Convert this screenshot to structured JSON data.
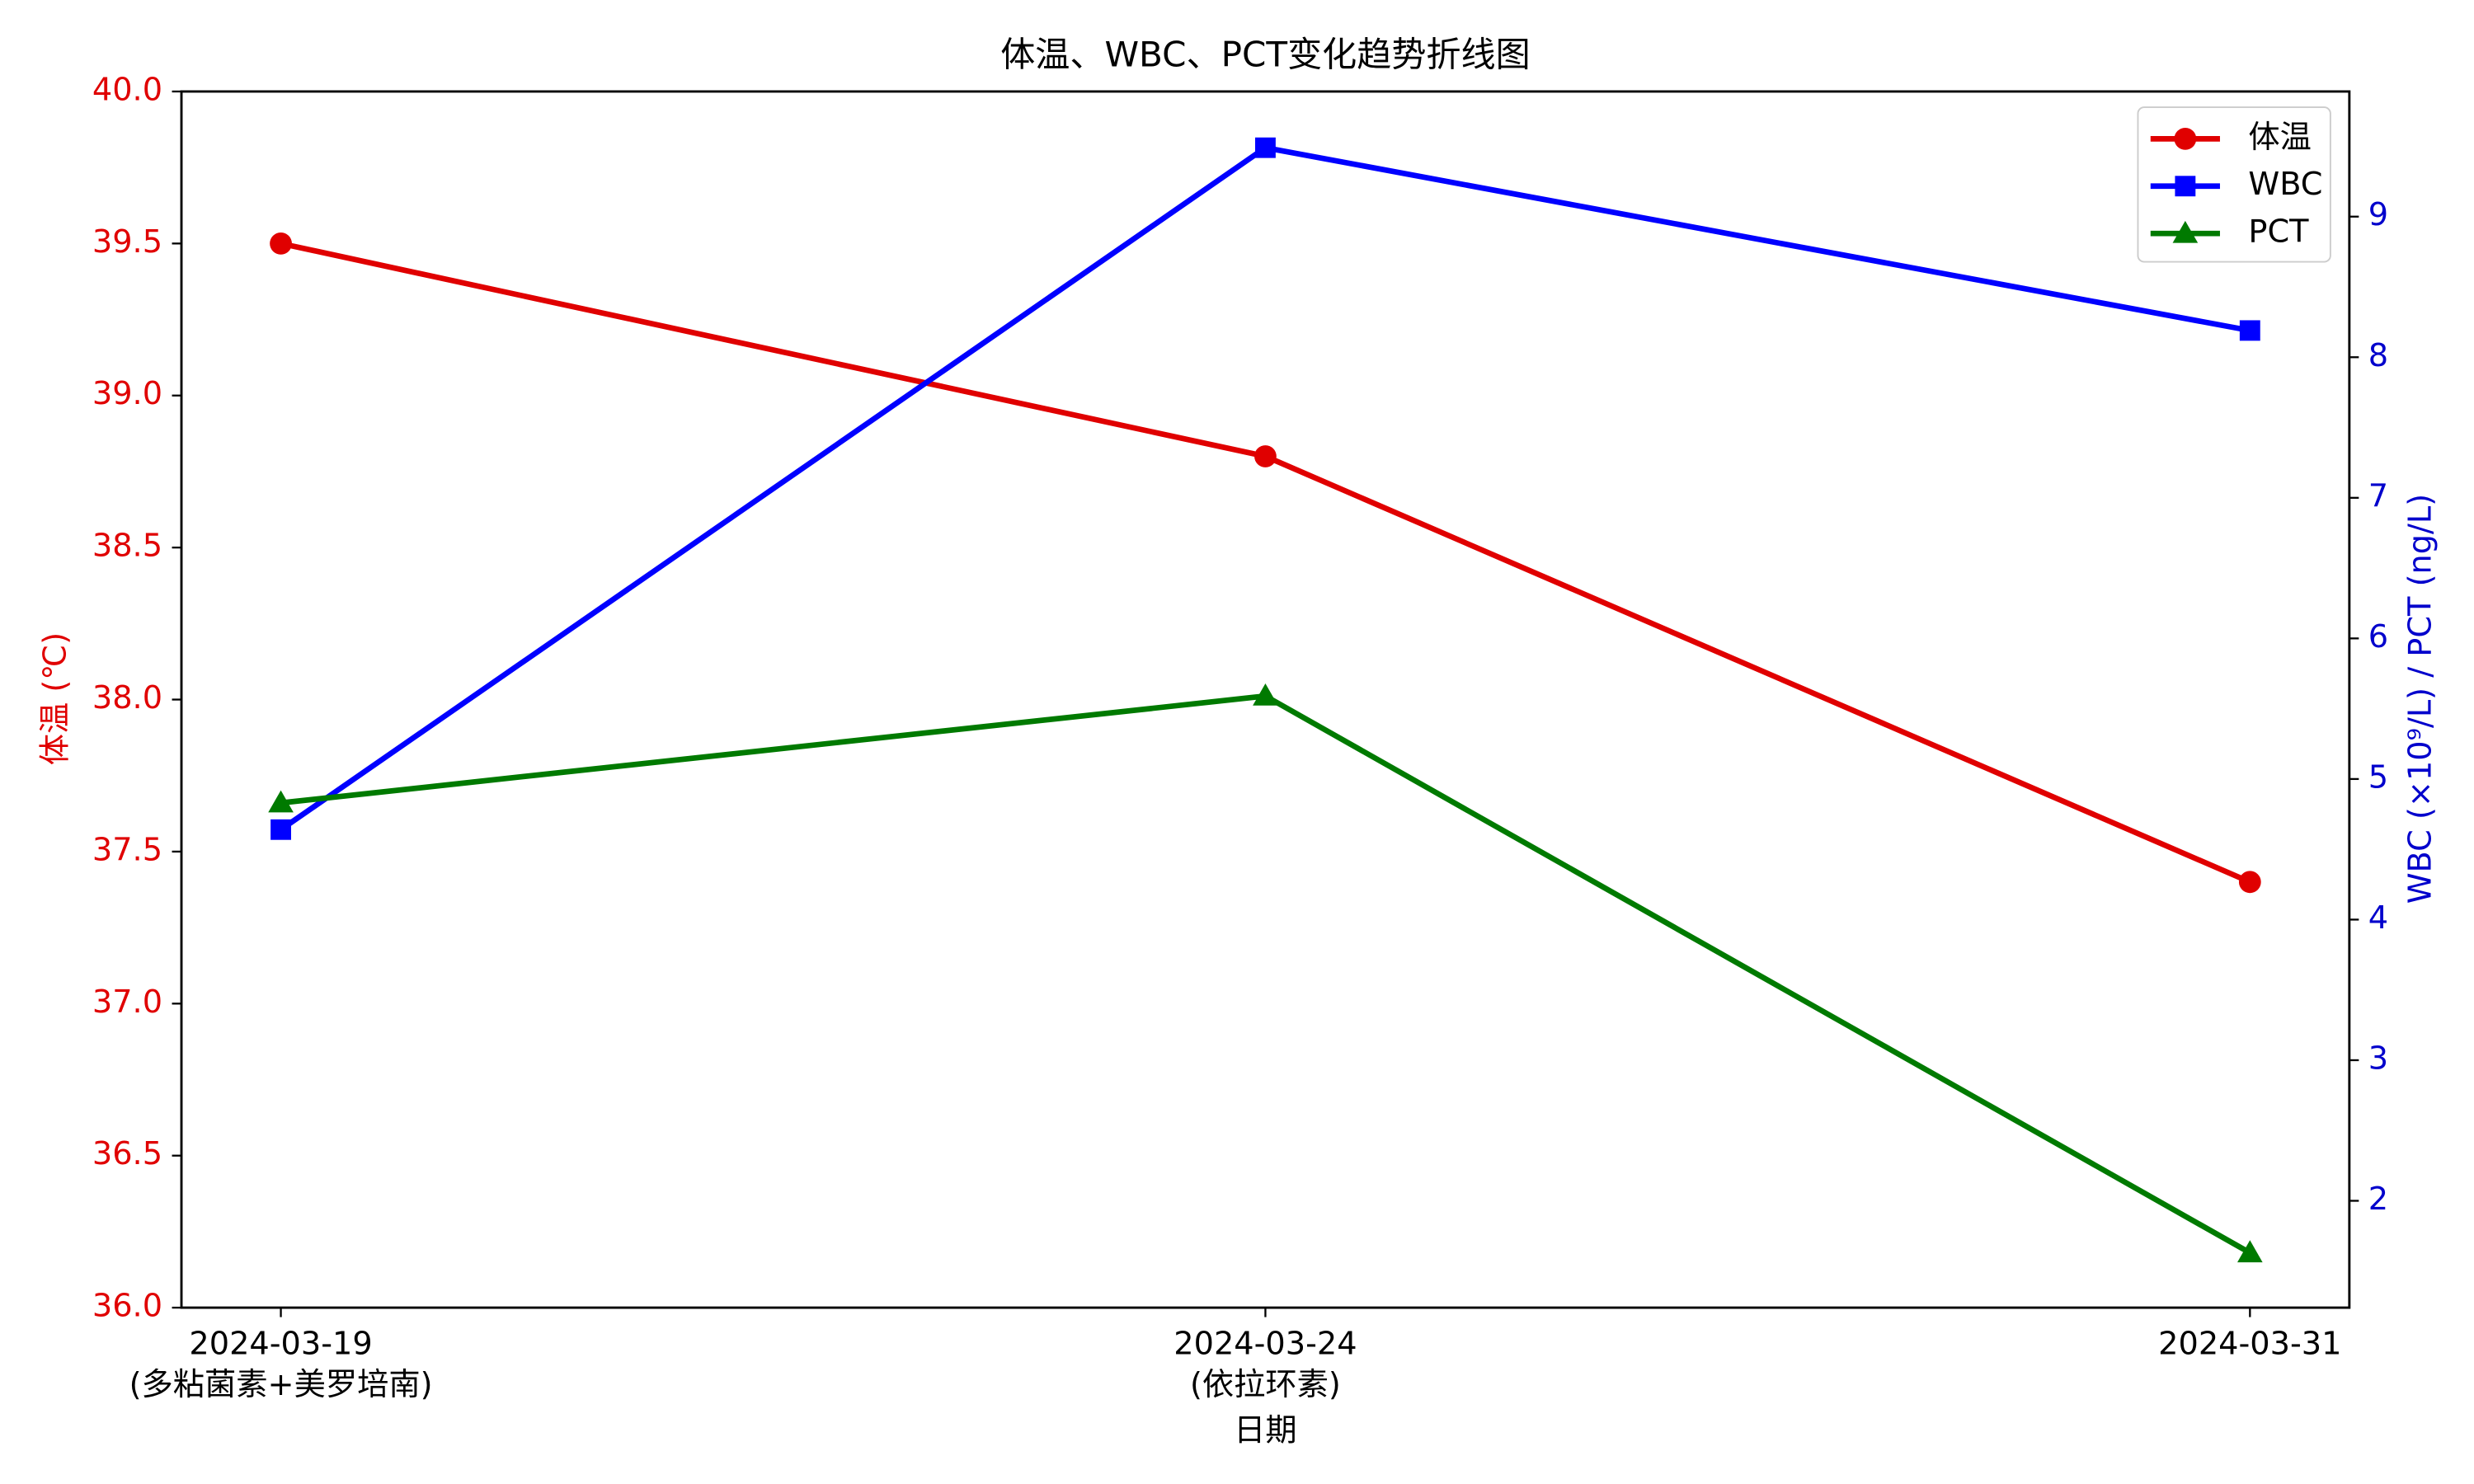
{
  "chart_data": {
    "type": "line",
    "title": "体温、WBC、PCT变化趋势折线图",
    "x_label": "日期",
    "y_label": "体温 (℃)",
    "y2_label": "WBC (×10⁹/L) / PCT (ng/L)",
    "categories": [
      "2024-03-19",
      "2024-03-24",
      "2024-03-31"
    ],
    "category_notes": [
      "(多粘菌素+美罗培南)",
      "(依拉环素)",
      null
    ],
    "series": [
      {
        "name": "体温",
        "color": "#e00000",
        "marker": "circle",
        "values": [
          39.5,
          38.8,
          37.4
        ]
      },
      {
        "name": "WBC",
        "color": "#0000ff",
        "marker": "square",
        "axis": "y2",
        "values": [
          4.64,
          9.49,
          8.19
        ]
      },
      {
        "name": "PCT",
        "color": "#007a00",
        "marker": "triangle",
        "axis": "y2",
        "values": [
          4.83,
          5.59,
          1.63
        ]
      }
    ],
    "ylim": [
      36,
      40
    ],
    "yticks": [
      {
        "value": 36,
        "label": "36.0"
      },
      36.5,
      {
        "value": 37,
        "label": "37.0"
      },
      37.5,
      {
        "value": 38,
        "label": "38.0"
      },
      38.5,
      {
        "value": 39,
        "label": "39.0"
      },
      39.5,
      {
        "value": 40,
        "label": "40.0"
      }
    ],
    "y_color": "#e00000",
    "y2lim": [
      1.24,
      9.89
    ],
    "y2ticks": [
      2,
      3,
      4,
      5,
      6,
      7,
      8,
      9
    ],
    "y2_color": "#0000cc",
    "legend": "upper right",
    "grid": false
  }
}
